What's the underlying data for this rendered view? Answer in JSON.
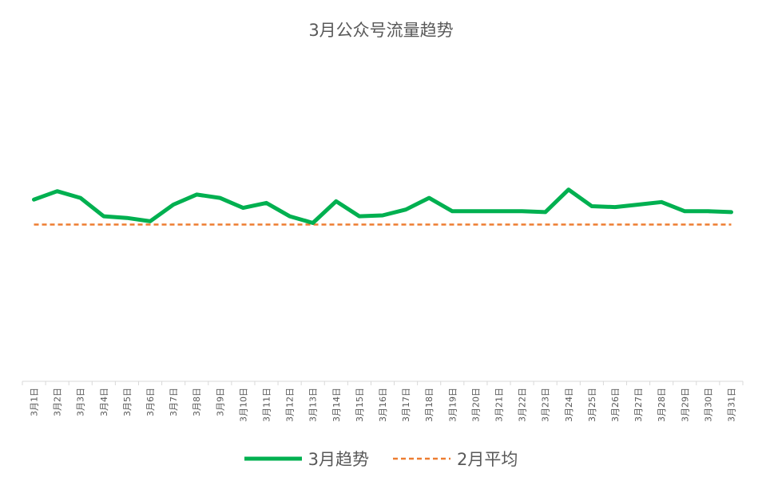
{
  "chart_data": {
    "type": "line",
    "title": "3月公众号流量趋势",
    "categories": [
      "3月1日",
      "3月2日",
      "3月3日",
      "3月4日",
      "3月5日",
      "3月6日",
      "3月7日",
      "3月8日",
      "3月9日",
      "3月10日",
      "3月11日",
      "3月12日",
      "3月13日",
      "3月14日",
      "3月15日",
      "3月16日",
      "3月17日",
      "3月18日",
      "3月19日",
      "3月20日",
      "3月21日",
      "3月22日",
      "3月23日",
      "3月24日",
      "3月25日",
      "3月26日",
      "3月27日",
      "3月28日",
      "3月29日",
      "3月30日",
      "3月31日"
    ],
    "series": [
      {
        "name": "3月趋势",
        "color": "#00b050",
        "style": "solid",
        "values": [
          1.09,
          1.14,
          1.1,
          0.99,
          0.98,
          0.96,
          1.06,
          1.12,
          1.1,
          1.04,
          1.07,
          0.99,
          0.95,
          1.08,
          0.99,
          0.995,
          1.03,
          1.1,
          1.02,
          1.02,
          1.02,
          1.02,
          1.015,
          1.15,
          1.05,
          1.045,
          1.06,
          1.075,
          1.02,
          1.02,
          1.015
        ]
      },
      {
        "name": "2月平均",
        "color": "#ed7d31",
        "style": "dashed",
        "values": [
          0.94,
          0.94,
          0.94,
          0.94,
          0.94,
          0.94,
          0.94,
          0.94,
          0.94,
          0.94,
          0.94,
          0.94,
          0.94,
          0.94,
          0.94,
          0.94,
          0.94,
          0.94,
          0.94,
          0.94,
          0.94,
          0.94,
          0.94,
          0.94,
          0.94,
          0.94,
          0.94,
          0.94,
          0.94,
          0.94,
          0.94
        ]
      }
    ],
    "ylim": [
      0,
      2
    ],
    "grid": false,
    "legend_position": "bottom",
    "xlabel": "",
    "ylabel": ""
  }
}
